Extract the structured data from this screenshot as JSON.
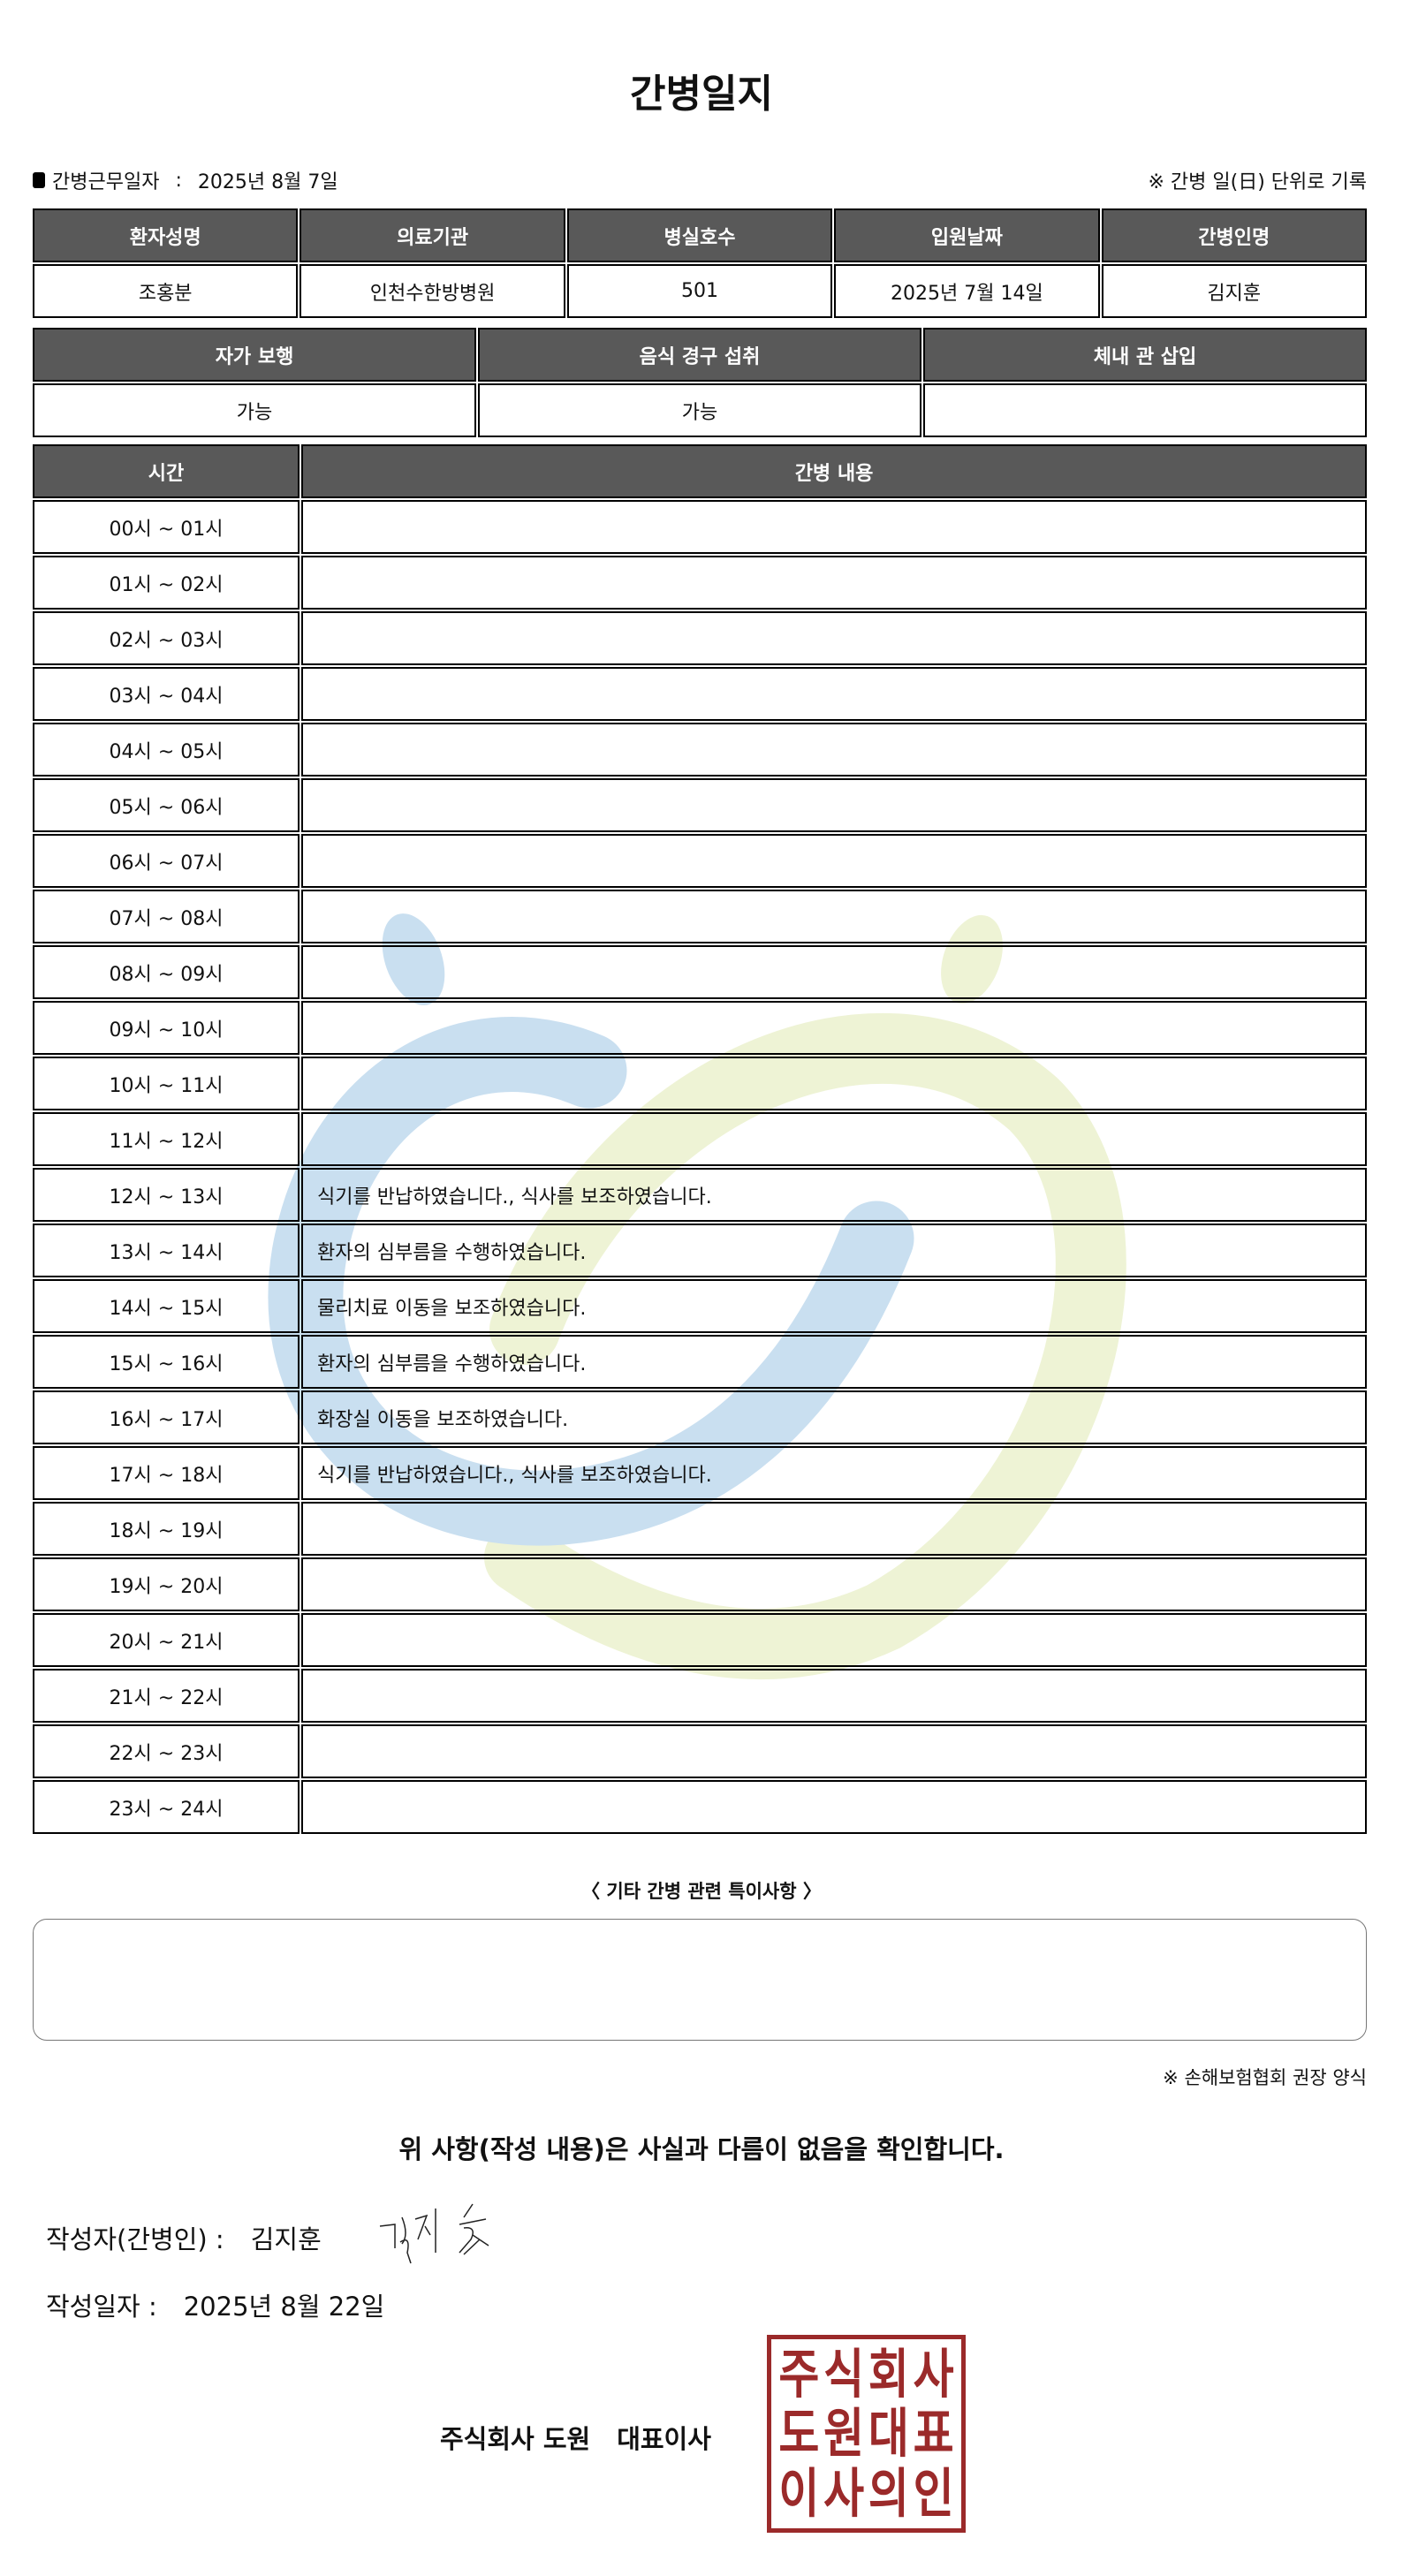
{
  "title": "간병일지",
  "info": {
    "work_date_label": "간병근무일자",
    "work_date_sep": ":",
    "work_date": "2025년 8월 7일",
    "note": "※ 간병 일(日) 단위로 기록"
  },
  "patient_table": {
    "headers": [
      "환자성명",
      "의료기관",
      "병실호수",
      "입원날짜",
      "간병인명"
    ],
    "values": [
      "조홍분",
      "인천수한방병원",
      "501",
      "2025년 7월 14일",
      "김지훈"
    ]
  },
  "status_table": {
    "headers": [
      "자가 보행",
      "음식 경구 섭취",
      "체내 관 삽입"
    ],
    "values": [
      "가능",
      "가능",
      ""
    ]
  },
  "log_table": {
    "headers": [
      "시간",
      "간병 내용"
    ],
    "rows": [
      {
        "time": "00시 ~ 01시",
        "content": ""
      },
      {
        "time": "01시 ~ 02시",
        "content": ""
      },
      {
        "time": "02시 ~ 03시",
        "content": ""
      },
      {
        "time": "03시 ~ 04시",
        "content": ""
      },
      {
        "time": "04시 ~ 05시",
        "content": ""
      },
      {
        "time": "05시 ~ 06시",
        "content": ""
      },
      {
        "time": "06시 ~ 07시",
        "content": ""
      },
      {
        "time": "07시 ~ 08시",
        "content": ""
      },
      {
        "time": "08시 ~ 09시",
        "content": ""
      },
      {
        "time": "09시 ~ 10시",
        "content": ""
      },
      {
        "time": "10시 ~ 11시",
        "content": ""
      },
      {
        "time": "11시 ~ 12시",
        "content": ""
      },
      {
        "time": "12시 ~ 13시",
        "content": "식기를 반납하였습니다., 식사를 보조하였습니다."
      },
      {
        "time": "13시 ~ 14시",
        "content": "환자의 심부름을 수행하였습니다."
      },
      {
        "time": "14시 ~ 15시",
        "content": "물리치료 이동을 보조하였습니다."
      },
      {
        "time": "15시 ~ 16시",
        "content": "환자의 심부름을 수행하였습니다."
      },
      {
        "time": "16시 ~ 17시",
        "content": "화장실 이동을 보조하였습니다."
      },
      {
        "time": "17시 ~ 18시",
        "content": "식기를 반납하였습니다., 식사를 보조하였습니다."
      },
      {
        "time": "18시 ~ 19시",
        "content": ""
      },
      {
        "time": "19시 ~ 20시",
        "content": ""
      },
      {
        "time": "20시 ~ 21시",
        "content": ""
      },
      {
        "time": "21시 ~ 22시",
        "content": ""
      },
      {
        "time": "22시 ~ 23시",
        "content": ""
      },
      {
        "time": "23시 ~ 24시",
        "content": ""
      }
    ]
  },
  "notes": {
    "title": "〈 기타 간병 관련 특이사항 〉",
    "value": ""
  },
  "footnote": "※ 손해보험협회 권장 양식",
  "confirm": "위 사항(작성 내용)은 사실과 다름이 없음을 확인합니다.",
  "writer": {
    "label": "작성자(간병인) :",
    "name": "김지훈"
  },
  "written_date": {
    "label": "작성일자 :",
    "value": "2025년 8월 22일"
  },
  "company": {
    "name": "주식회사 도원",
    "title": "대표이사"
  },
  "stamp": {
    "text": "주식회사도원대표이사의인",
    "color": "#9b2a2a"
  },
  "colors": {
    "header_bg": "#595959",
    "watermark_blue": "#c9dff0",
    "watermark_green": "#eef3d5"
  }
}
